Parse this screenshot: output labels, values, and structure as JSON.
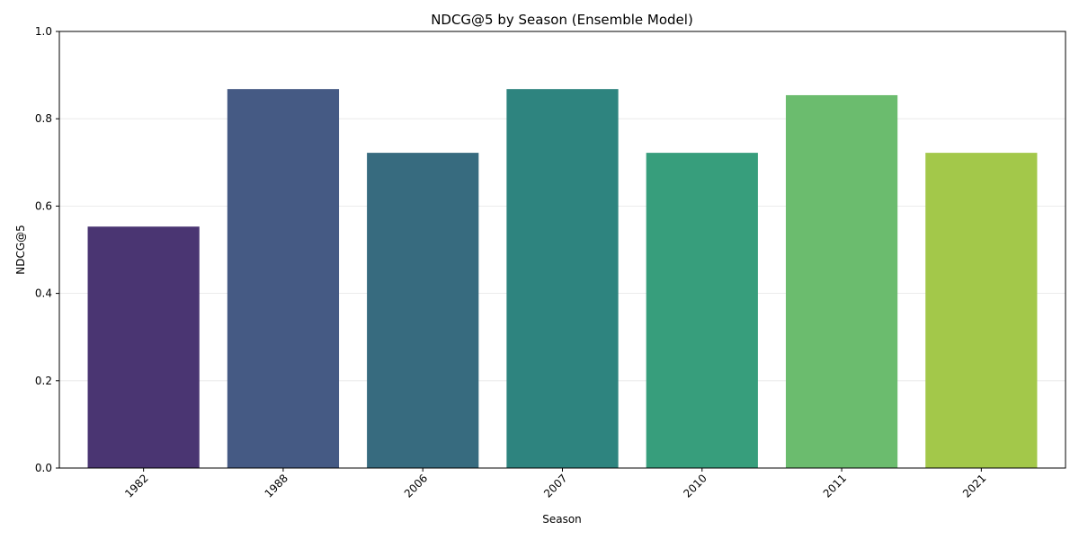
{
  "chart_data": {
    "type": "bar",
    "title": "NDCG@5 by Season (Ensemble Model)",
    "xlabel": "Season",
    "ylabel": "NDCG@5",
    "categories": [
      "1982",
      "1988",
      "2006",
      "2007",
      "2010",
      "2011",
      "2021"
    ],
    "values": [
      0.553,
      0.868,
      0.722,
      0.868,
      0.722,
      0.854,
      0.722
    ],
    "colors": [
      "#4a3572",
      "#455a84",
      "#376b7f",
      "#2e847f",
      "#379e7c",
      "#6bbc6e",
      "#a3c84a"
    ],
    "ylim": [
      0,
      1.0
    ],
    "yticks": [
      "0.0",
      "0.2",
      "0.4",
      "0.6",
      "0.8",
      "1.0"
    ],
    "grid": "horizontal",
    "xtick_rotation": 45
  }
}
